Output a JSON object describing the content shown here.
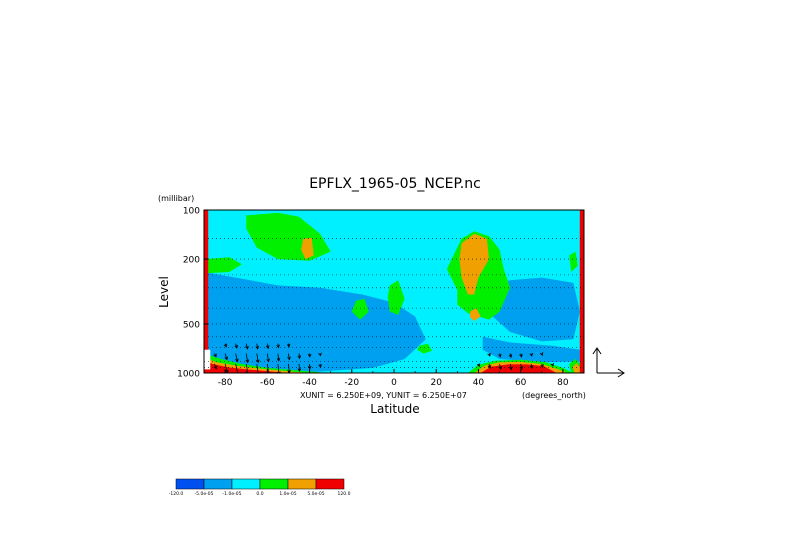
{
  "chart_data": {
    "type": "heatmap",
    "title": "EPFLX_1965-05_NCEP.nc",
    "xlabel": "Latitude",
    "ylabel": "Level",
    "y_unit": "(millibar)",
    "x_unit": "(degrees_north)",
    "vector_scale": "XUNIT = 6.250E+09, YUNIT = 6.250E+07",
    "xlim": [
      -90,
      90
    ],
    "ylim": [
      1000,
      100
    ],
    "y_scale": "log",
    "x_ticks": [
      -80,
      -60,
      -40,
      -20,
      0,
      20,
      40,
      60,
      80
    ],
    "x_tick_labels": [
      "-80",
      "-60",
      "-40",
      "-20",
      "0",
      "20",
      "40",
      "60",
      "80"
    ],
    "y_ticks": [
      100,
      200,
      500,
      1000
    ],
    "y_tick_labels": [
      "100",
      "200",
      "500",
      "1000"
    ],
    "grid": true,
    "colorbar": {
      "levels": [
        "-120.0",
        "-5.0e-05",
        "-1.0e-05",
        "0.0",
        "1.0e-05",
        "5.0e-05",
        "120.0"
      ],
      "colors": [
        "#0050f0",
        "#00a0f0",
        "#00f0ff",
        "#00f000",
        "#f0a000",
        "#f00000"
      ]
    },
    "regions": [
      {
        "fill": "#00f0ff",
        "points": [
          [
            -90,
            100
          ],
          [
            90,
            100
          ],
          [
            90,
            1000
          ],
          [
            -90,
            1000
          ]
        ]
      },
      {
        "fill": "#0050f0",
        "points": [
          [
            -85,
            290
          ],
          [
            -70,
            330
          ],
          [
            -50,
            350
          ],
          [
            -30,
            370
          ],
          [
            -15,
            400
          ],
          [
            -5,
            450
          ],
          [
            5,
            560
          ],
          [
            -5,
            760
          ],
          [
            -20,
            900
          ],
          [
            -50,
            960
          ],
          [
            -80,
            940
          ],
          [
            -87,
            700
          ],
          [
            -87,
            450
          ]
        ]
      },
      {
        "fill": "#0050f0",
        "points": [
          [
            50,
            310
          ],
          [
            62,
            290
          ],
          [
            75,
            300
          ],
          [
            85,
            360
          ],
          [
            84,
            540
          ],
          [
            70,
            560
          ],
          [
            55,
            490
          ]
        ]
      },
      {
        "fill": "#00a0f0",
        "points": [
          [
            -90,
            240
          ],
          [
            -75,
            260
          ],
          [
            -55,
            290
          ],
          [
            -35,
            300
          ],
          [
            -15,
            330
          ],
          [
            0,
            370
          ],
          [
            10,
            450
          ],
          [
            15,
            620
          ],
          [
            5,
            820
          ],
          [
            -10,
            930
          ],
          [
            -40,
            990
          ],
          [
            -80,
            990
          ],
          [
            -90,
            950
          ]
        ]
      },
      {
        "fill": "#00a0f0",
        "points": [
          [
            42,
            300
          ],
          [
            55,
            270
          ],
          [
            70,
            260
          ],
          [
            85,
            280
          ],
          [
            88,
            420
          ],
          [
            85,
            620
          ],
          [
            70,
            640
          ],
          [
            55,
            560
          ],
          [
            45,
            430
          ]
        ]
      },
      {
        "fill": "#00a0f0",
        "points": [
          [
            42,
            600
          ],
          [
            55,
            650
          ],
          [
            75,
            680
          ],
          [
            88,
            720
          ],
          [
            88,
            850
          ],
          [
            70,
            860
          ],
          [
            50,
            820
          ],
          [
            42,
            720
          ]
        ]
      },
      {
        "fill": "#00f000",
        "points": [
          [
            -70,
            108
          ],
          [
            -55,
            104
          ],
          [
            -45,
            110
          ],
          [
            -35,
            140
          ],
          [
            -30,
            180
          ],
          [
            -40,
            205
          ],
          [
            -55,
            200
          ],
          [
            -65,
            170
          ],
          [
            -70,
            130
          ]
        ]
      },
      {
        "fill": "#00f000",
        "points": [
          [
            -90,
            200
          ],
          [
            -78,
            195
          ],
          [
            -72,
            215
          ],
          [
            -78,
            240
          ],
          [
            -90,
            245
          ]
        ]
      },
      {
        "fill": "#00f000",
        "points": [
          [
            25,
            230
          ],
          [
            32,
            150
          ],
          [
            38,
            135
          ],
          [
            45,
            145
          ],
          [
            50,
            175
          ],
          [
            52,
            230
          ],
          [
            55,
            300
          ],
          [
            50,
            420
          ],
          [
            45,
            470
          ],
          [
            35,
            430
          ],
          [
            30,
            380
          ],
          [
            30,
            310
          ]
        ]
      },
      {
        "fill": "#00f000",
        "points": [
          [
            -2,
            290
          ],
          [
            2,
            270
          ],
          [
            5,
            350
          ],
          [
            2,
            440
          ],
          [
            -2,
            420
          ],
          [
            -3,
            340
          ]
        ]
      },
      {
        "fill": "#00f000",
        "points": [
          [
            -18,
            360
          ],
          [
            -14,
            350
          ],
          [
            -12,
            420
          ],
          [
            -16,
            470
          ],
          [
            -20,
            420
          ]
        ]
      },
      {
        "fill": "#00f000",
        "points": [
          [
            83,
            190
          ],
          [
            86,
            180
          ],
          [
            87,
            220
          ],
          [
            84,
            240
          ]
        ]
      },
      {
        "fill": "#00f000",
        "points": [
          [
            12,
            680
          ],
          [
            16,
            660
          ],
          [
            18,
            730
          ],
          [
            14,
            760
          ],
          [
            11,
            720
          ]
        ]
      },
      {
        "fill": "#f0a000",
        "points": [
          [
            -43,
            150
          ],
          [
            -39,
            148
          ],
          [
            -38,
            190
          ],
          [
            -42,
            200
          ],
          [
            -44,
            175
          ]
        ]
      },
      {
        "fill": "#f0a000",
        "points": [
          [
            32,
            160
          ],
          [
            38,
            140
          ],
          [
            44,
            150
          ],
          [
            45,
            200
          ],
          [
            40,
            260
          ],
          [
            38,
            330
          ],
          [
            35,
            330
          ],
          [
            32,
            260
          ],
          [
            31,
            200
          ]
        ]
      },
      {
        "fill": "#f0a000",
        "points": [
          [
            36,
            420
          ],
          [
            39,
            400
          ],
          [
            41,
            450
          ],
          [
            38,
            480
          ],
          [
            36,
            455
          ]
        ]
      },
      {
        "fill": "#00f000",
        "points": [
          [
            -90,
            760
          ],
          [
            -82,
            820
          ],
          [
            -72,
            880
          ],
          [
            -60,
            930
          ],
          [
            -45,
            965
          ],
          [
            -35,
            990
          ],
          [
            -35,
            1000
          ],
          [
            -90,
            1000
          ]
        ]
      },
      {
        "fill": "#f0a000",
        "points": [
          [
            -90,
            800
          ],
          [
            -84,
            860
          ],
          [
            -74,
            905
          ],
          [
            -62,
            945
          ],
          [
            -48,
            980
          ],
          [
            -40,
            1000
          ],
          [
            -90,
            1000
          ]
        ]
      },
      {
        "fill": "#f00000",
        "points": [
          [
            -90,
            830
          ],
          [
            -86,
            880
          ],
          [
            -78,
            925
          ],
          [
            -68,
            955
          ],
          [
            -56,
            985
          ],
          [
            -50,
            1000
          ],
          [
            -90,
            1000
          ]
        ]
      },
      {
        "fill": "#00f000",
        "points": [
          [
            35,
            1000
          ],
          [
            40,
            890
          ],
          [
            48,
            840
          ],
          [
            60,
            830
          ],
          [
            72,
            860
          ],
          [
            80,
            930
          ],
          [
            85,
            1000
          ]
        ]
      },
      {
        "fill": "#f0a000",
        "points": [
          [
            38,
            1000
          ],
          [
            43,
            900
          ],
          [
            50,
            860
          ],
          [
            60,
            855
          ],
          [
            70,
            880
          ],
          [
            78,
            950
          ],
          [
            82,
            1000
          ]
        ]
      },
      {
        "fill": "#f00000",
        "points": [
          [
            41,
            1000
          ],
          [
            46,
            915
          ],
          [
            54,
            885
          ],
          [
            63,
            885
          ],
          [
            71,
            910
          ],
          [
            77,
            1000
          ]
        ]
      },
      {
        "fill": "#00f000",
        "points": [
          [
            83,
            880
          ],
          [
            86,
            820
          ],
          [
            88,
            880
          ],
          [
            88,
            1000
          ],
          [
            84,
            1000
          ]
        ]
      },
      {
        "fill": "#f0a000",
        "points": [
          [
            84.5,
            920
          ],
          [
            86.5,
            870
          ],
          [
            88,
            920
          ],
          [
            88,
            1000
          ],
          [
            85.5,
            1000
          ]
        ]
      },
      {
        "fill": "#f00000",
        "points": [
          [
            -90,
            100
          ],
          [
            -88,
            100
          ],
          [
            -88,
            1000
          ],
          [
            -90,
            1000
          ]
        ]
      },
      {
        "fill": "#f00000",
        "points": [
          [
            88,
            100
          ],
          [
            90,
            100
          ],
          [
            90,
            1000
          ],
          [
            88,
            1000
          ]
        ]
      },
      {
        "fill": "#ffffff",
        "points": [
          [
            -90,
            720
          ],
          [
            -87,
            720
          ],
          [
            -87,
            950
          ],
          [
            -90,
            950
          ]
        ]
      }
    ],
    "vectors": [
      [
        -85,
        880,
        0.6,
        -1.2
      ],
      [
        -80,
        880,
        0.8,
        -2.2
      ],
      [
        -75,
        880,
        0.8,
        -2.8
      ],
      [
        -70,
        880,
        0.7,
        -3.0
      ],
      [
        -65,
        880,
        0.6,
        -3.0
      ],
      [
        -60,
        880,
        0.5,
        -2.8
      ],
      [
        -55,
        880,
        0.4,
        -2.6
      ],
      [
        -50,
        880,
        0.3,
        -2.2
      ],
      [
        -45,
        880,
        0.2,
        -1.8
      ],
      [
        -40,
        880,
        0.1,
        -1.2
      ],
      [
        -35,
        880,
        0.1,
        -0.8
      ],
      [
        -85,
        760,
        0.5,
        -0.8
      ],
      [
        -80,
        760,
        0.6,
        -1.5
      ],
      [
        -75,
        760,
        0.6,
        -2.0
      ],
      [
        -70,
        760,
        0.5,
        -2.2
      ],
      [
        -65,
        760,
        0.5,
        -2.2
      ],
      [
        -60,
        760,
        0.4,
        -2.0
      ],
      [
        -55,
        760,
        0.3,
        -1.8
      ],
      [
        -50,
        760,
        0.3,
        -1.5
      ],
      [
        -45,
        760,
        0.2,
        -1.2
      ],
      [
        -40,
        760,
        0.1,
        -0.8
      ],
      [
        -35,
        760,
        0.1,
        -0.5
      ],
      [
        -80,
        660,
        0.4,
        -0.8
      ],
      [
        -75,
        660,
        0.4,
        -1.1
      ],
      [
        -70,
        660,
        0.4,
        -1.3
      ],
      [
        -65,
        660,
        0.3,
        -1.3
      ],
      [
        -60,
        660,
        0.3,
        -1.2
      ],
      [
        -55,
        660,
        0.2,
        -1.0
      ],
      [
        -50,
        660,
        0.2,
        -0.8
      ],
      [
        40,
        880,
        0.3,
        -0.6
      ],
      [
        45,
        880,
        0.4,
        -1.0
      ],
      [
        50,
        880,
        0.4,
        -1.3
      ],
      [
        55,
        880,
        0.4,
        -1.4
      ],
      [
        60,
        880,
        0.4,
        -1.3
      ],
      [
        65,
        880,
        0.3,
        -1.1
      ],
      [
        70,
        880,
        0.3,
        -0.8
      ],
      [
        75,
        880,
        0.2,
        -0.5
      ],
      [
        45,
        760,
        0.3,
        -0.6
      ],
      [
        50,
        760,
        0.3,
        -0.8
      ],
      [
        55,
        760,
        0.3,
        -0.9
      ],
      [
        60,
        760,
        0.3,
        -0.8
      ],
      [
        65,
        760,
        0.2,
        -0.6
      ],
      [
        70,
        760,
        0.2,
        -0.4
      ]
    ]
  }
}
